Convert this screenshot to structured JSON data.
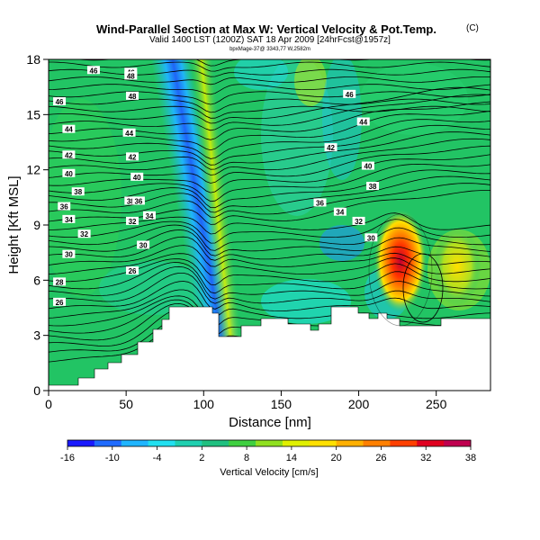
{
  "chart_data": {
    "type": "heatmap",
    "title": "Wind-Parallel Section at Max W: Vertical Velocity & Pot.Temp.",
    "copyright": "(C)",
    "subtitle": "Valid 1400 LST (1200Z) SAT 18 Apr 2009 [24hrFcst@1957z]",
    "subtitle2": "bpxMage-37@ 3343,77 W,2582m",
    "xlabel": "Distance [nm]",
    "ylabel": "Height [Kft MSL]",
    "xlim": [
      0,
      285
    ],
    "ylim": [
      0,
      18
    ],
    "xticks": [
      0,
      50,
      100,
      150,
      200,
      250
    ],
    "yticks": [
      0,
      3,
      6,
      9,
      12,
      15,
      18
    ],
    "colorbar": {
      "label": "Vertical Velocity [cm/s]",
      "ticks": [
        -16,
        -10,
        -4,
        2,
        8,
        14,
        20,
        26,
        32,
        38
      ],
      "colors": [
        "#1a1aff",
        "#1f6bff",
        "#1fb5ff",
        "#22e0f0",
        "#1fd0b0",
        "#20c080",
        "#3fd040",
        "#90e020",
        "#e0f000",
        "#ffe000",
        "#ffb000",
        "#ff8000",
        "#ff4000",
        "#e00020",
        "#c00050"
      ]
    },
    "contour_label_values": [
      48,
      46,
      44,
      42,
      40,
      38,
      36,
      34,
      32,
      30,
      28,
      26
    ],
    "contour_labels": [
      {
        "text": "46",
        "x": 29,
        "y": 17.4
      },
      {
        "text": "46",
        "x": 53,
        "y": 17.3
      },
      {
        "text": "46",
        "x": 7,
        "y": 15.7
      },
      {
        "text": "44",
        "x": 13,
        "y": 14.2
      },
      {
        "text": "42",
        "x": 13,
        "y": 12.8
      },
      {
        "text": "40",
        "x": 13,
        "y": 11.8
      },
      {
        "text": "38",
        "x": 19,
        "y": 10.8
      },
      {
        "text": "36",
        "x": 10,
        "y": 10.0
      },
      {
        "text": "34",
        "x": 13,
        "y": 9.3
      },
      {
        "text": "32",
        "x": 23,
        "y": 8.5
      },
      {
        "text": "30",
        "x": 13,
        "y": 7.4
      },
      {
        "text": "28",
        "x": 7,
        "y": 5.9
      },
      {
        "text": "26",
        "x": 7,
        "y": 4.8
      },
      {
        "text": "48",
        "x": 53,
        "y": 17.1
      },
      {
        "text": "48",
        "x": 54,
        "y": 16.0
      },
      {
        "text": "44",
        "x": 52,
        "y": 14.0
      },
      {
        "text": "42",
        "x": 54,
        "y": 12.7
      },
      {
        "text": "40",
        "x": 57,
        "y": 11.6
      },
      {
        "text": "38",
        "x": 53,
        "y": 10.3
      },
      {
        "text": "36",
        "x": 58,
        "y": 10.3
      },
      {
        "text": "32",
        "x": 54,
        "y": 9.2
      },
      {
        "text": "34",
        "x": 65,
        "y": 9.5
      },
      {
        "text": "30",
        "x": 61,
        "y": 7.9
      },
      {
        "text": "26",
        "x": 54,
        "y": 6.5
      },
      {
        "text": "46",
        "x": 194,
        "y": 16.1
      },
      {
        "text": "44",
        "x": 203,
        "y": 14.6
      },
      {
        "text": "42",
        "x": 182,
        "y": 13.2
      },
      {
        "text": "40",
        "x": 206,
        "y": 12.2
      },
      {
        "text": "38",
        "x": 209,
        "y": 11.1
      },
      {
        "text": "36",
        "x": 175,
        "y": 10.2
      },
      {
        "text": "34",
        "x": 188,
        "y": 9.7
      },
      {
        "text": "32",
        "x": 200,
        "y": 9.2
      },
      {
        "text": "30",
        "x": 208,
        "y": 8.3
      }
    ]
  }
}
